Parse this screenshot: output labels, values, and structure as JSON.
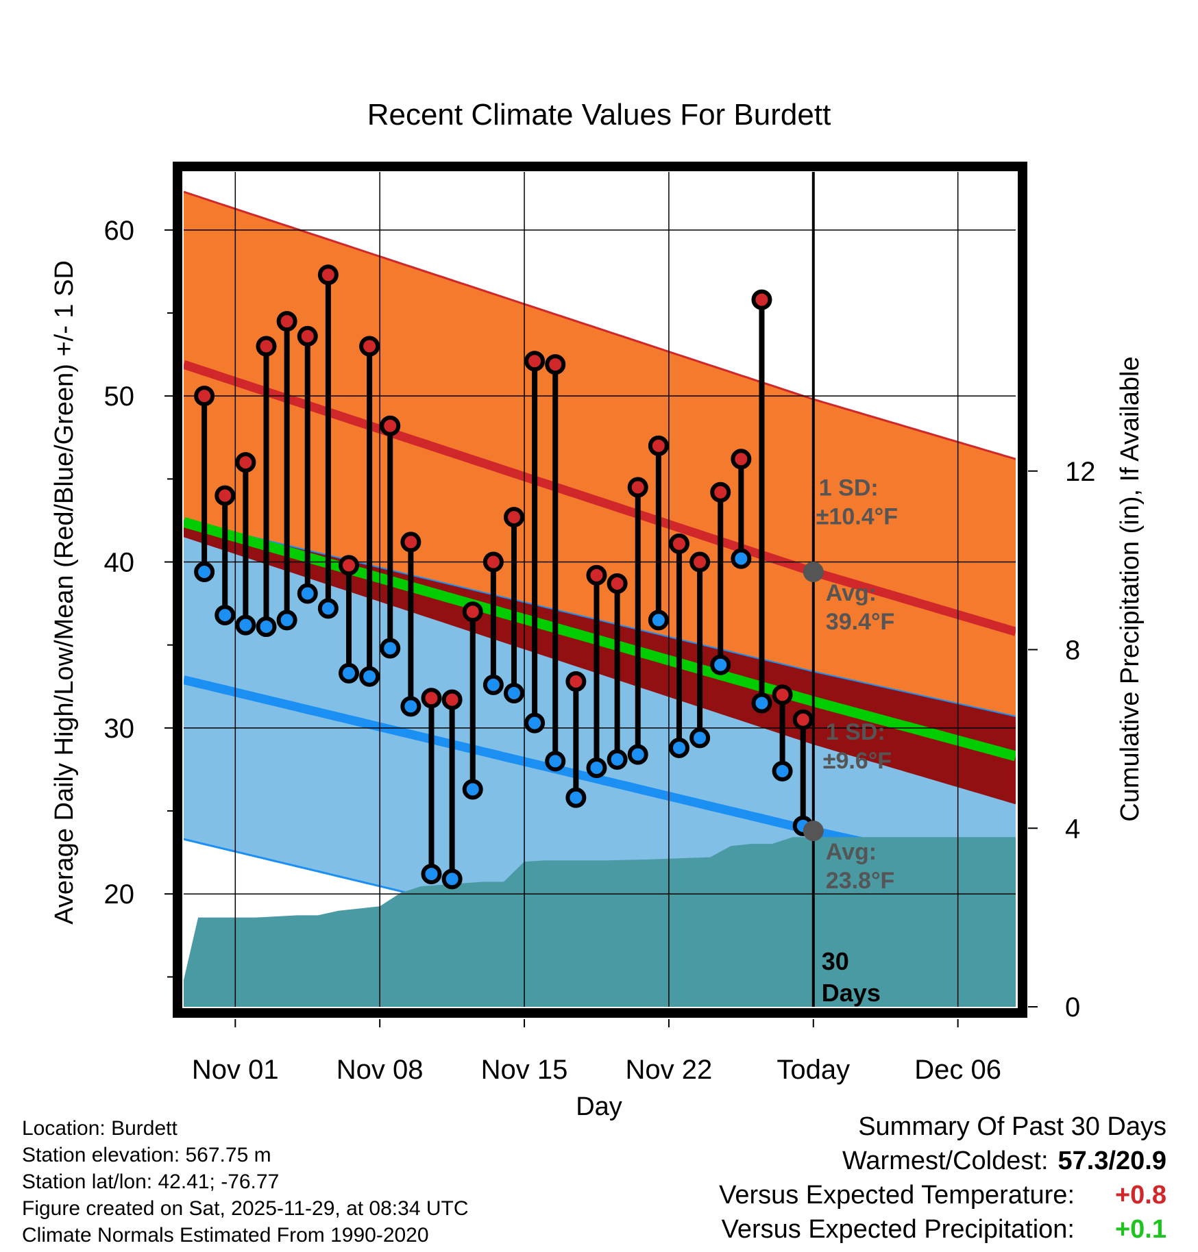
{
  "chart_data": {
    "type": "line",
    "title": "Recent Climate Values For Burdett",
    "xlabel": "Day",
    "ylabel": "Average Daily High/Low/Mean (Red/Blue/Green) +/- 1 SD",
    "y2label": "Cumulative Precipitation (in), If Available",
    "xlim": [
      0,
      40.3
    ],
    "ylim": [
      13.2,
      63.5
    ],
    "y2lim": [
      0,
      18.7
    ],
    "x_ticks": [
      {
        "x": 2.5,
        "label": "Nov 01"
      },
      {
        "x": 9.5,
        "label": "Nov 08"
      },
      {
        "x": 16.5,
        "label": "Nov 15"
      },
      {
        "x": 23.5,
        "label": "Nov 22"
      },
      {
        "x": 30.5,
        "label": "Today"
      },
      {
        "x": 37.5,
        "label": "Dec 06"
      }
    ],
    "y_ticks": [
      20,
      30,
      40,
      50,
      60
    ],
    "y2_ticks": [
      0,
      4,
      8,
      12
    ],
    "normal_high": {
      "x": [
        0,
        30.5,
        40.3
      ],
      "avg": [
        51.9,
        39.4,
        35.8
      ],
      "sd": 10.4
    },
    "normal_low": {
      "x": [
        0,
        30.5,
        40.3
      ],
      "avg": [
        32.9,
        23.8,
        21.1
      ],
      "sd": 9.6
    },
    "normal_mean": {
      "x": [
        0,
        30.5,
        40.3
      ],
      "values": [
        42.4,
        31.6,
        28.3
      ]
    },
    "observed": {
      "x": [
        1,
        2,
        3,
        4,
        5,
        6,
        7,
        8,
        9,
        10,
        11,
        12,
        13,
        14,
        15,
        16,
        17,
        18,
        19,
        20,
        21,
        22,
        23,
        24,
        25,
        26,
        27,
        28,
        29,
        30
      ],
      "highs": [
        50.0,
        44.0,
        46.0,
        53.0,
        54.5,
        53.6,
        57.3,
        39.8,
        53.0,
        48.2,
        41.2,
        31.8,
        31.7,
        37.0,
        40.0,
        42.7,
        52.1,
        51.9,
        32.8,
        39.2,
        38.7,
        44.5,
        47.0,
        41.1,
        40.0,
        44.2,
        46.2,
        55.8,
        32.0,
        30.5
      ],
      "lows": [
        39.4,
        36.8,
        36.2,
        36.1,
        36.5,
        38.1,
        37.2,
        33.3,
        33.1,
        34.8,
        31.3,
        21.2,
        20.9,
        26.3,
        32.6,
        32.1,
        30.3,
        28.0,
        25.8,
        27.6,
        28.1,
        28.4,
        36.5,
        28.8,
        29.4,
        33.8,
        40.2,
        31.5,
        27.4,
        24.1
      ]
    },
    "precip": {
      "x": [
        0,
        0.7,
        3.5,
        5.5,
        6.5,
        7.5,
        9.5,
        10.5,
        11.5,
        14.5,
        15.5,
        16.5,
        17.5,
        20.5,
        22.5,
        25.5,
        26.5,
        27.5,
        28.5,
        29.5,
        40.3
      ],
      "values": [
        0.6,
        2.0,
        2.0,
        2.05,
        2.05,
        2.15,
        2.25,
        2.55,
        2.7,
        2.8,
        2.8,
        3.25,
        3.28,
        3.28,
        3.3,
        3.35,
        3.6,
        3.65,
        3.65,
        3.8,
        3.8
      ]
    },
    "annotations": {
      "high_sd": "1 SD:",
      "high_sd_value": "±10.4°F",
      "high_avg": "Avg:",
      "high_avg_value": "39.4°F",
      "low_sd": "1 SD:",
      "low_sd_value": "±9.6°F",
      "low_avg": "Avg:",
      "low_avg_value": "23.8°F",
      "days_number": "30",
      "days_word": "Days"
    },
    "colors": {
      "high_band": "#f47a2e",
      "high_line": "#d0272a",
      "low_band": "#82bfe6",
      "low_line": "#1b8ff2",
      "mean_line": "#00cc00",
      "overlap_band": "#921012",
      "precip": "#4a9aa3",
      "high_dot": "#d0272a",
      "low_dot": "#1b8ff2",
      "avg_dot": "#555555"
    }
  },
  "footer": {
    "location": "Location: Burdett",
    "elevation": "Station elevation: 567.75 m",
    "latlon": "Station lat/lon: 42.41; -76.77",
    "created": "Figure created on Sat, 2025-11-29, at 08:34 UTC",
    "normals": "Climate Normals Estimated From 1990-2020"
  },
  "summary": {
    "title": "Summary Of Past 30 Days",
    "warm_cold_label": "Warmest/Coldest:",
    "warm_cold_value": "57.3/20.9",
    "temp_label": "Versus Expected Temperature:",
    "temp_value": "+0.8",
    "temp_color": "#d0272a",
    "precip_label": "Versus Expected Precipitation:",
    "precip_value": "+0.1",
    "precip_color": "#1ec41e"
  }
}
